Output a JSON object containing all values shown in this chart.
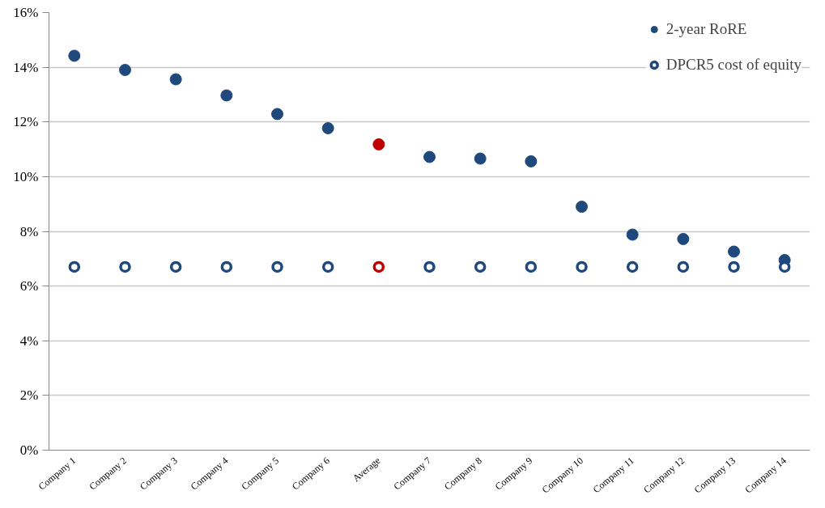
{
  "chart_data": {
    "type": "scatter",
    "categories": [
      "Company 1",
      "Company 2",
      "Company 3",
      "Company 4",
      "Company 5",
      "Company 6",
      "Average",
      "Company 7",
      "Company 8",
      "Company 9",
      "Company 10",
      "Company 11",
      "Company 12",
      "Company 13",
      "Company 14"
    ],
    "series": [
      {
        "name": "2-year RoRE",
        "marker": "circle",
        "colors": [
          "#1f497d",
          "#1f497d",
          "#1f497d",
          "#1f497d",
          "#1f497d",
          "#1f497d",
          "#c00000",
          "#1f497d",
          "#1f497d",
          "#1f497d",
          "#1f497d",
          "#1f497d",
          "#1f497d",
          "#1f497d",
          "#1f497d"
        ],
        "values": [
          14.42,
          13.9,
          13.56,
          12.97,
          12.29,
          11.77,
          11.18,
          10.72,
          10.66,
          10.56,
          8.9,
          7.88,
          7.72,
          7.26,
          6.95
        ]
      },
      {
        "name": "DPCR5 cost of equity",
        "marker": "circle",
        "colors": [
          "#1f497d",
          "#1f497d",
          "#1f497d",
          "#1f497d",
          "#1f497d",
          "#1f497d",
          "#c00000",
          "#1f497d",
          "#1f497d",
          "#1f497d",
          "#1f497d",
          "#1f497d",
          "#1f497d",
          "#1f497d",
          "#1f497d"
        ],
        "values": [
          6.7,
          6.7,
          6.7,
          6.7,
          6.7,
          6.7,
          6.7,
          6.7,
          6.7,
          6.7,
          6.7,
          6.7,
          6.7,
          6.7,
          6.7
        ]
      }
    ],
    "ylim": [
      0,
      16
    ],
    "yticks": [
      {
        "value": 0,
        "label": "0%"
      },
      {
        "value": 2,
        "label": "2%"
      },
      {
        "value": 4,
        "label": "4%"
      },
      {
        "value": 6,
        "label": "6%"
      },
      {
        "value": 8,
        "label": "8%"
      },
      {
        "value": 10,
        "label": "10%"
      },
      {
        "value": 12,
        "label": "12%"
      },
      {
        "value": 14,
        "label": "14%"
      },
      {
        "value": 16,
        "label": "16%"
      }
    ],
    "grid": "y",
    "legend": "top right"
  }
}
